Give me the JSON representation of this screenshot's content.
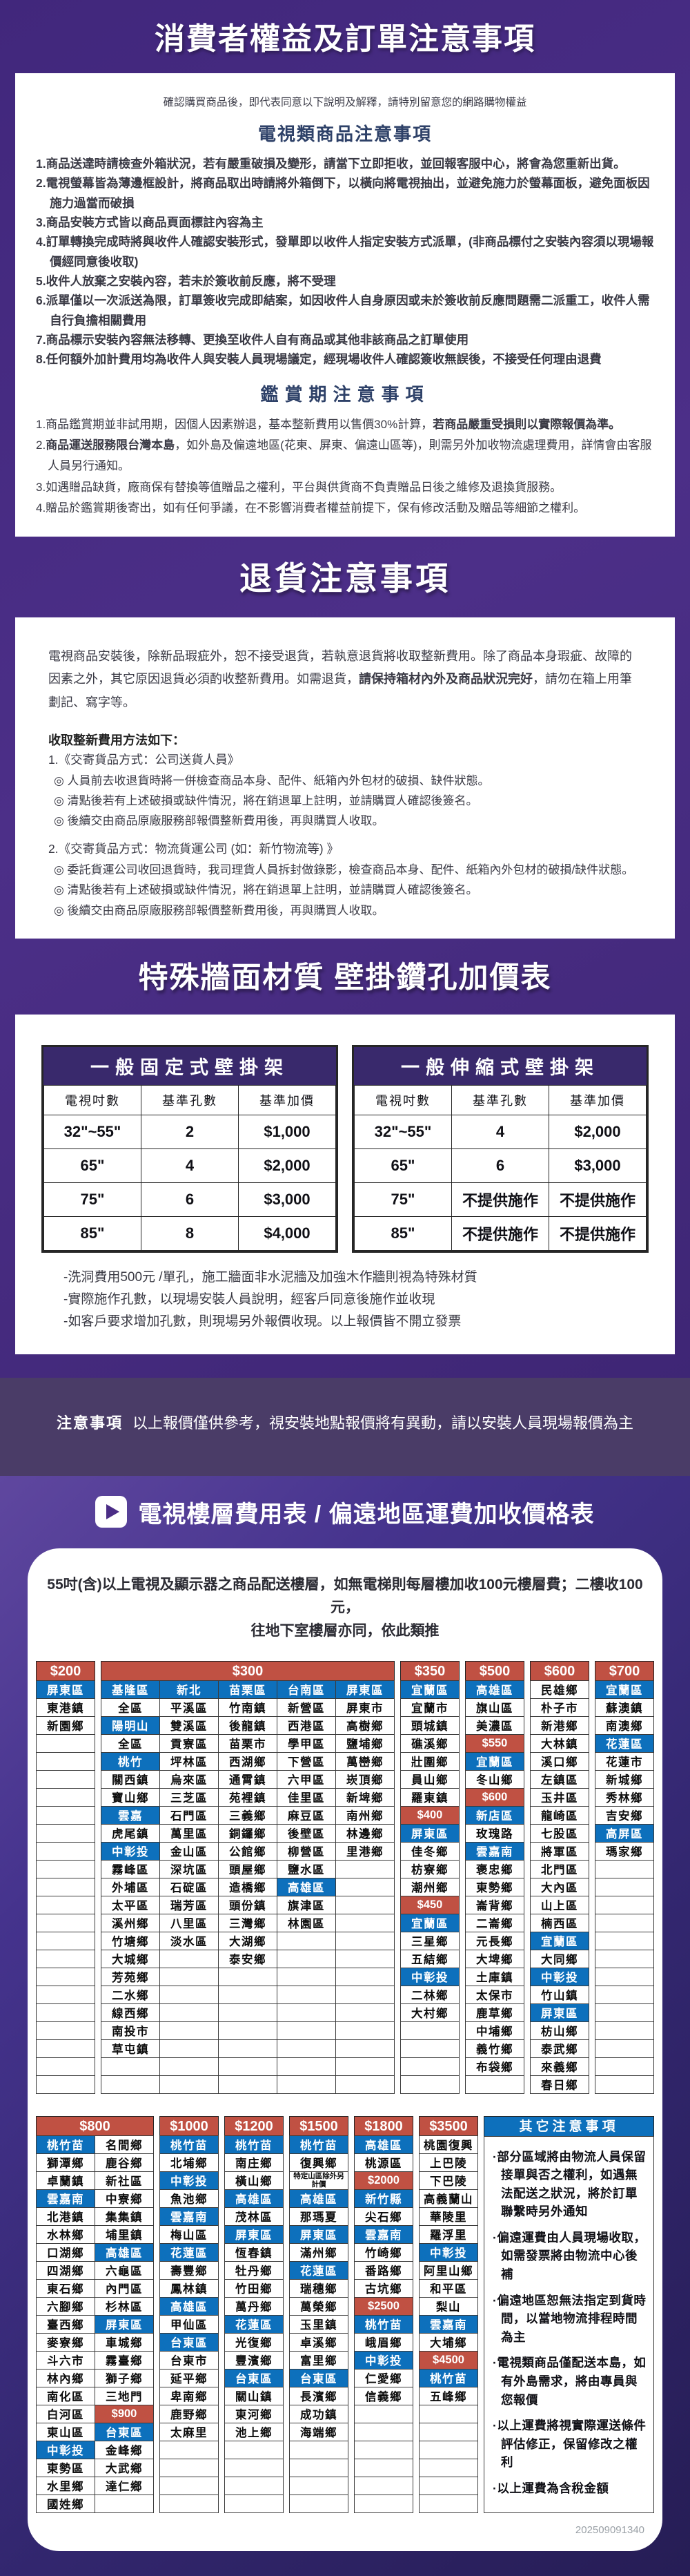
{
  "top": {
    "title": "消費者權益及訂單注意事項",
    "intro": "確認購買商品後，即代表同意以下說明及解釋，請特別留意您的網路購物權益",
    "tv_header": "電視類商品注意事項",
    "tv_items": [
      "1.商品送達時請檢查外箱狀況，若有嚴重破損及變形，請當下立即拒收，並回報客服中心，將會為您重新出貨。",
      "2.電視螢幕皆為薄邊框設計，將商品取出時請將外箱倒下，以橫向將電視抽出，並避免施力於螢幕面板，避免面板因施力過當而破損",
      "3.商品安裝方式皆以商品頁面標註內容為主",
      "4.訂單轉換完成時將與收件人確認安裝形式，發單即以收件人指定安裝方式派單，(非商品標付之安裝內容須以現場報價經同意後收取)",
      "5.收件人放棄之安裝內容，若未於簽收前反應，將不受理",
      "6.派單僅以一次派送為限，訂單簽收完成即結案，如因收件人自身原因或未於簽收前反應問題需二派重工，收件人需自行負擔相關費用",
      "7.商品標示安裝內容無法移轉、更換至收件人自有商品或其他非該商品之訂單使用",
      "8.任何額外加計費用均為收件人與安裝人員現場議定，經現場收件人確認簽收無誤後，不接受任何理由退費"
    ],
    "trial_header": "鑑賞期注意事項",
    "trial_items": [
      [
        {
          "t": "1.商品鑑賞期並非試用期，因個人因素辦退，基本整新費用以售價30%計算，",
          "b": false
        },
        {
          "t": "若商品嚴重受損則以實際報價為準。",
          "b": true
        }
      ],
      [
        {
          "t": "2.",
          "b": false
        },
        {
          "t": "商品運送服務限台灣本島",
          "b": true
        },
        {
          "t": "，如外島及偏遠地區(花東、屏東、偏遠山區等)，則需另外加收物流處理費用，詳情會由客服人員另行通知。",
          "b": false
        }
      ],
      [
        {
          "t": "3.如遇贈品缺貨，廠商保有替換等值贈品之權利，平台與供貨商不負責贈品日後之維修及退換貨服務。",
          "b": false
        }
      ],
      [
        {
          "t": "4.贈品於鑑賞期後寄出，如有任何爭議，在不影響消費者權益前提下，保有修改活動及贈品等細節之權利。",
          "b": false
        }
      ]
    ]
  },
  "return_card": {
    "band_title": "退貨注意事項",
    "para": [
      {
        "t": "電視商品安裝後，除新品瑕疵外，恕不接受退貨，若執意退貨將收取整新費用。除了商品本身瑕疵、故障的因素之外，其它原因退貨必須酌收整新費用。如需退貨，",
        "b": false
      },
      {
        "t": "請保持箱材內外及商品狀況完好",
        "b": true
      },
      {
        "t": "，請勿在箱上用筆劃記、寫字等。",
        "b": false
      }
    ],
    "method_title": "收取整新費用方法如下：",
    "method1_title": "1.《交寄貨品方式：公司送貨人員》",
    "method1_items": [
      "◎ 人員前去收退貨時將一併檢查商品本身、配件、紙箱內外包材的破損、缺件狀態。",
      "◎ 清點後若有上述破損或缺件情況，將在銷退單上註明，並請購買人確認後簽名。",
      "◎ 後續交由商品原廠服務部報價整新費用後，再與購買人收取。"
    ],
    "method2_title": "2.《交寄貨品方式：物流貨運公司 (如：新竹物流等) 》",
    "method2_items": [
      "◎ 委託貨運公司收回退貨時，我司理貨人員拆封做錄影，檢查商品本身、配件、紙箱內外包材的破損/缺件狀態。",
      "◎ 清點後若有上述破損或缺件情況，將在銷退單上註明，並請購買人確認後簽名。",
      "◎ 後續交由商品原廠服務部報價整新費用後，再與購買人收取。"
    ]
  },
  "mount": {
    "band_title": "特殊牆面材質 壁掛鑽孔加價表",
    "tables": [
      {
        "title": "一般固定式壁掛架",
        "headers": [
          "電視吋數",
          "基準孔數",
          "基準加價"
        ],
        "rows": [
          [
            "32\"~55\"",
            "2",
            "$1,000"
          ],
          [
            "65\"",
            "4",
            "$2,000"
          ],
          [
            "75\"",
            "6",
            "$3,000"
          ],
          [
            "85\"",
            "8",
            "$4,000"
          ]
        ]
      },
      {
        "title": "一般伸縮式壁掛架",
        "headers": [
          "電視吋數",
          "基準孔數",
          "基準加價"
        ],
        "rows": [
          [
            "32\"~55\"",
            "4",
            "$2,000"
          ],
          [
            "65\"",
            "6",
            "$3,000"
          ],
          [
            "75\"",
            "不提供施作",
            "不提供施作"
          ],
          [
            "85\"",
            "不提供施作",
            "不提供施作"
          ]
        ]
      }
    ],
    "notes": [
      "-洗洞費用500元 /單孔，施工牆面非水泥牆及加強木作牆則視為特殊材質",
      "-實際施作孔數，以現場安裝人員說明，經客戶同意後施作並收現",
      "-如客戶要求增加孔數，則現場另外報價收現。以上報價皆不開立發票"
    ],
    "notice_label": "注意事項",
    "notice_text": "以上報價僅供參考，視安裝地點報價將有異動，請以安裝人員現場報價為主"
  },
  "freight": {
    "title": "電視樓層費用表 / 偏遠地區運費加收價格表",
    "intro_lines": [
      "55吋(含)以上電視及顯示器之商品配送樓層，如無電梯則每層樓加收100元樓層費；二樓收100元，",
      "往地下室樓層亦同，依此類推"
    ],
    "table1": {
      "groups": [
        {
          "price": "$200",
          "cols": [
            [
              "b|屏東區",
              "東港鎮",
              "新園鄉",
              "",
              "",
              "",
              "",
              "",
              "",
              "",
              "",
              "",
              "",
              "",
              "",
              "",
              "",
              "",
              "",
              "",
              "",
              "",
              ""
            ]
          ]
        },
        {
          "price": "$300",
          "cols": [
            [
              "b|基隆區",
              "全區",
              "b|陽明山",
              "全區",
              "b|桃竹",
              "關西鎮",
              "寶山鄉",
              "b|雲嘉",
              "虎尾鎮",
              "b|中彰投",
              "霧峰區",
              "外埔區",
              "太平區",
              "溪州鄉",
              "竹塘鄉",
              "大城鄉",
              "芳苑鄉",
              "二水鄉",
              "線西鄉",
              "南投市",
              "草屯鎮",
              "",
              ""
            ],
            [
              "b|新北",
              "平溪區",
              "雙溪區",
              "貢寮區",
              "坪林區",
              "烏來區",
              "三芝區",
              "石門區",
              "萬里區",
              "金山區",
              "深坑區",
              "石碇區",
              "瑞芳區",
              "八里區",
              "淡水區",
              "",
              "",
              "",
              "",
              "",
              "",
              "",
              ""
            ],
            [
              "b|苗栗區",
              "竹南鎮",
              "後龍鎮",
              "苗栗市",
              "西湖鄉",
              "通霄鎮",
              "苑裡鎮",
              "三義鄉",
              "銅鑼鄉",
              "公館鄉",
              "頭屋鄉",
              "造橋鄉",
              "頭份鎮",
              "三灣鄉",
              "大湖鄉",
              "泰安鄉",
              "",
              "",
              "",
              "",
              "",
              "",
              ""
            ],
            [
              "b|台南區",
              "新營區",
              "西港區",
              "學甲區",
              "下營區",
              "六甲區",
              "佳里區",
              "麻豆區",
              "後壁區",
              "柳營區",
              "鹽水區",
              "b|高雄區",
              "旗津區",
              "林園區",
              "",
              "",
              "",
              "",
              "",
              "",
              "",
              "",
              ""
            ],
            [
              "b|屏東區",
              "屏東市",
              "高樹鄉",
              "鹽埔鄉",
              "萬巒鄉",
              "崁頂鄉",
              "新埤鄉",
              "南州鄉",
              "林邊鄉",
              "里港鄉",
              "",
              "",
              "",
              "",
              "",
              "",
              "",
              "",
              "",
              "",
              "",
              "",
              ""
            ]
          ]
        },
        {
          "price": "$350",
          "cols": [
            [
              "b|宜蘭區",
              "宜蘭市",
              "頭城鎮",
              "礁溪鄉",
              "壯圍鄉",
              "員山鄉",
              "羅東鎮",
              "r|$400",
              "b|屏東區",
              "佳冬鄉",
              "枋寮鄉",
              "潮州鄉",
              "r|$450",
              "b|宜蘭區",
              "三星鄉",
              "五結鄉",
              "b|中彰投",
              "二林鄉",
              "大村鄉",
              "",
              "",
              "",
              ""
            ]
          ]
        },
        {
          "price": "$500",
          "cols": [
            [
              "b|高雄區",
              "旗山區",
              "美濃區",
              "r|$550",
              "b|宜蘭區",
              "冬山鄉",
              "r|$600",
              "b|新店區",
              "玫瑰路",
              "b|雲嘉南",
              "褒忠鄉",
              "東勢鄉",
              "崙背鄉",
              "二崙鄉",
              "元長鄉",
              "大埤鄉",
              "土庫鎮",
              "太保市",
              "鹿草鄉",
              "中埔鄉",
              "義竹鄉",
              "布袋鄉",
              ""
            ]
          ]
        },
        {
          "price": "$600",
          "cols": [
            [
              "民雄鄉",
              "朴子市",
              "新港鄉",
              "大林鎮",
              "溪口鄉",
              "左鎮區",
              "玉井區",
              "龍崎區",
              "七股區",
              "將軍區",
              "北門區",
              "大內區",
              "山上區",
              "楠西區",
              "b|宜蘭區",
              "大同鄉",
              "b|中彰投",
              "竹山鎮",
              "b|屏東區",
              "枋山鄉",
              "泰武鄉",
              "來義鄉",
              "春日鄉"
            ]
          ]
        },
        {
          "price": "$700",
          "cols": [
            [
              "b|宜蘭區",
              "蘇澳鎮",
              "南澳鄉",
              "b|花蓮區",
              "花蓮市",
              "新城鄉",
              "秀林鄉",
              "吉安鄉",
              "b|高屏區",
              "瑪家鄉",
              "",
              "",
              "",
              "",
              "",
              "",
              "",
              "",
              "",
              "",
              "",
              "",
              ""
            ]
          ]
        }
      ]
    },
    "table2": {
      "groups": [
        {
          "price": "$800",
          "cols": [
            [
              "b|桃竹苗",
              "獅潭鄉",
              "卓蘭鎮",
              "b|雲嘉南",
              "北港鎮",
              "水林鄉",
              "口湖鄉",
              "四湖鄉",
              "東石鄉",
              "六腳鄉",
              "臺西鄉",
              "麥寮鄉",
              "斗六市",
              "林內鄉",
              "南化區",
              "白河區",
              "東山區",
              "b|中彰投",
              "東勢區",
              "水里鄉",
              "國姓鄉"
            ],
            [
              "名間鄉",
              "鹿谷鄉",
              "新社區",
              "中寮鄉",
              "集集鎮",
              "埔里鎮",
              "b|高雄區",
              "六龜區",
              "內門區",
              "杉林區",
              "b|屏東區",
              "車城鄉",
              "霧臺鄉",
              "獅子鄉",
              "三地門",
              "r|$900",
              "b|台東區",
              "金峰鄉",
              "大武鄉",
              "達仁鄉",
              ""
            ]
          ]
        },
        {
          "price": "$1000",
          "cols": [
            [
              "b|桃竹苗",
              "北埔鄉",
              "b|中彰投",
              "魚池鄉",
              "b|雲嘉南",
              "梅山區",
              "b|花蓮區",
              "壽豐鄉",
              "鳳林鎮",
              "b|高雄區",
              "甲仙區",
              "b|台東區",
              "台東市",
              "延平鄉",
              "卑南鄉",
              "鹿野鄉",
              "太麻里",
              "",
              "",
              "",
              ""
            ]
          ]
        },
        {
          "price": "$1200",
          "cols": [
            [
              "b|桃竹苗",
              "南庄鄉",
              "橫山鄉",
              "b|高雄區",
              "茂林區",
              "b|屏東區",
              "恆春鎮",
              "牡丹鄉",
              "竹田鄉",
              "萬丹鄉",
              "b|花蓮區",
              "光復鄉",
              "豐濱鄉",
              "b|台東區",
              "關山鎮",
              "東河鄉",
              "池上鄉",
              "",
              "",
              "",
              ""
            ]
          ]
        },
        {
          "price": "$1500",
          "cols": [
            [
              "b|桃竹苗",
              "復興鄉",
              "n|特定山區除外另計價",
              "b|高雄區",
              "那瑪夏",
              "b|屏東區",
              "滿州鄉",
              "b|花蓮區",
              "瑞穗鄉",
              "萬榮鄉",
              "玉里鎮",
              "卓溪鄉",
              "富里鄉",
              "b|台東區",
              "長濱鄉",
              "成功鎮",
              "海端鄉",
              "",
              "",
              "",
              ""
            ]
          ]
        },
        {
          "price": "$1800",
          "cols": [
            [
              "b|高雄區",
              "桃源區",
              "r|$2000",
              "b|新竹縣",
              "尖石鄉",
              "b|雲嘉南",
              "竹崎鄉",
              "番路鄉",
              "古坑鄉",
              "r|$2500",
              "b|桃竹苗",
              "峨眉鄉",
              "b|中彰投",
              "仁愛鄉",
              "信義鄉",
              "",
              "",
              "",
              "",
              "",
              ""
            ]
          ]
        },
        {
          "price": "$3500",
          "cols": [
            [
              "桃園復興",
              "上巴陵",
              "下巴陵",
              "高義蘭山",
              "華陵里",
              "羅浮里",
              "b|中彰投",
              "阿里山鄉",
              "和平區",
              "梨山",
              "b|雲嘉南",
              "大埔鄉",
              "r|$4500",
              "b|桃竹苗",
              "五峰鄉",
              "",
              "",
              "",
              "",
              "",
              ""
            ]
          ]
        }
      ]
    },
    "other_notes": {
      "title": "其它注意事項",
      "items": [
        "·部分區域將由物流人員保留接單與否之權利，如遇無法配送之狀況，將於訂單聯繫時另外通知",
        "·偏遠運費由人員現場收取，如需發票將由物流中心後補",
        "·偏遠地區恕無法指定到貨時間，以當地物流排程時間為主",
        "·電視類商品僅配送本島，如有外島需求，將由專員與您報價",
        "·以上運費將視實際運送條件評估修正，保留修改之權利",
        "·以上運費為含稅金額"
      ]
    },
    "timestamp": "202509091340"
  }
}
